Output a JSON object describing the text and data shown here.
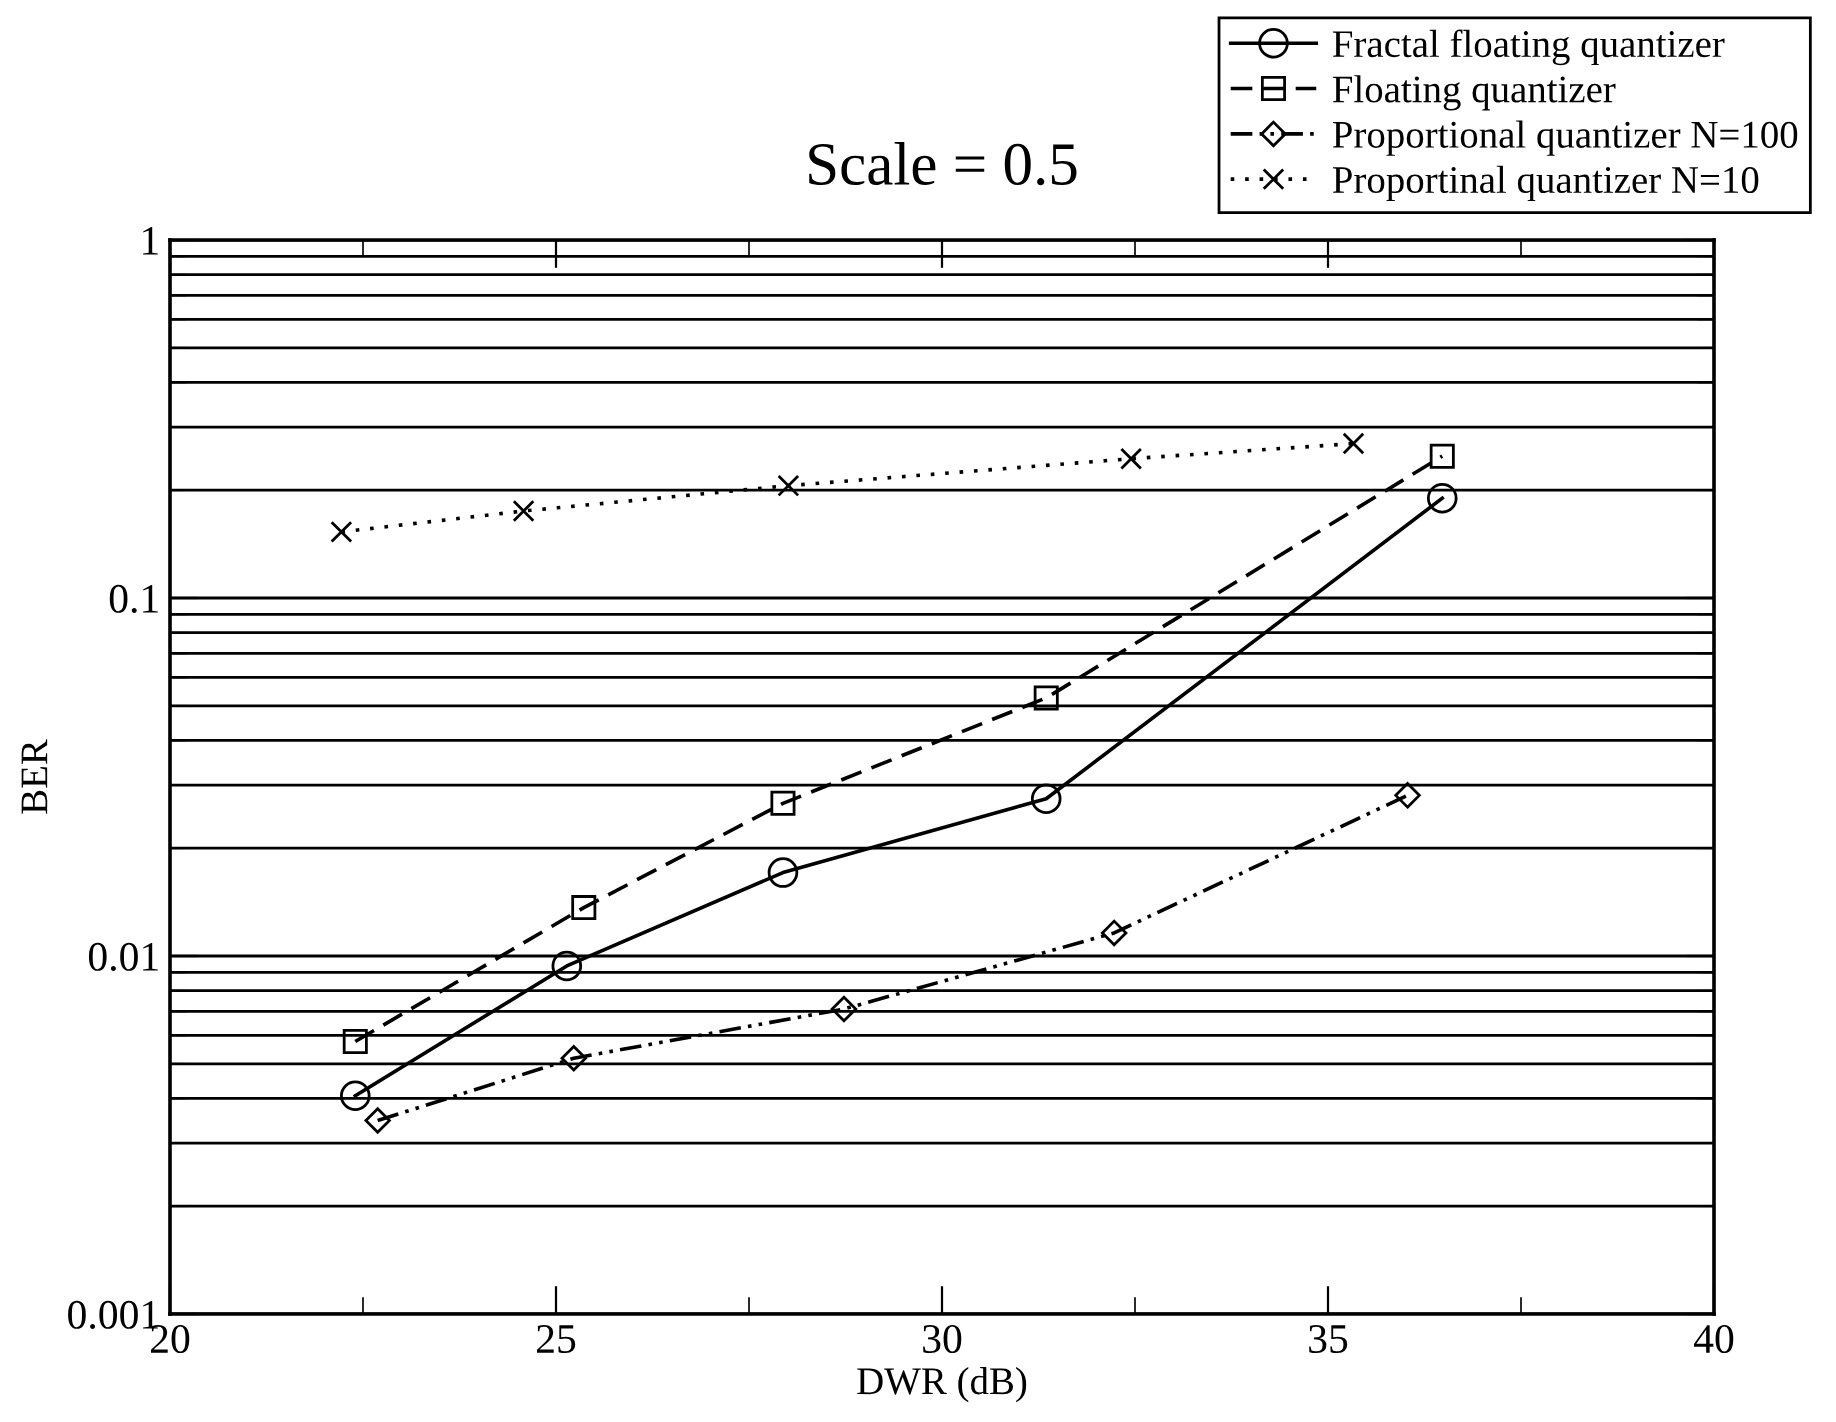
{
  "chart_data": {
    "type": "line",
    "title": "Scale = 0.5",
    "xlabel": "DWR (dB)",
    "ylabel": "BER",
    "log": "y",
    "xlim": [
      20,
      40
    ],
    "xticks": [
      20,
      25,
      30,
      35,
      40
    ],
    "ylim": [
      0.001,
      1
    ],
    "yticks": [
      0.001,
      0.01,
      0.1,
      1
    ],
    "grid": "y",
    "legend": "top right",
    "series": [
      {
        "name": "Fractal floating quantizer",
        "color": "#000000",
        "marker": "circle",
        "line_style": "solid",
        "x": [
          22.4,
          25.14,
          27.94,
          31.35,
          36.48
        ],
        "values": [
          0.00407,
          0.00938,
          0.0171,
          0.0275,
          0.19
        ]
      },
      {
        "name": "Floating quantizer",
        "color": "#000000",
        "marker": "square",
        "line_style": "dashed",
        "x": [
          22.4,
          25.36,
          27.94,
          31.35,
          36.48
        ],
        "values": [
          0.00577,
          0.01365,
          0.0267,
          0.0526,
          0.249
        ]
      },
      {
        "name": "Proportional quantizer N=100",
        "color": "#000000",
        "marker": "diamond",
        "line_style": "dashdot",
        "x": [
          22.69,
          25.23,
          28.73,
          32.23,
          36.03
        ],
        "values": [
          0.00347,
          0.00518,
          0.00711,
          0.0116,
          0.0281
        ]
      },
      {
        "name": "Proportinal quantizer N=10",
        "color": "#000000",
        "marker": "cross",
        "line_style": "dotted",
        "x": [
          22.22,
          24.58,
          28.01,
          32.45,
          35.33
        ],
        "values": [
          0.153,
          0.175,
          0.206,
          0.245,
          0.27
        ]
      }
    ]
  }
}
